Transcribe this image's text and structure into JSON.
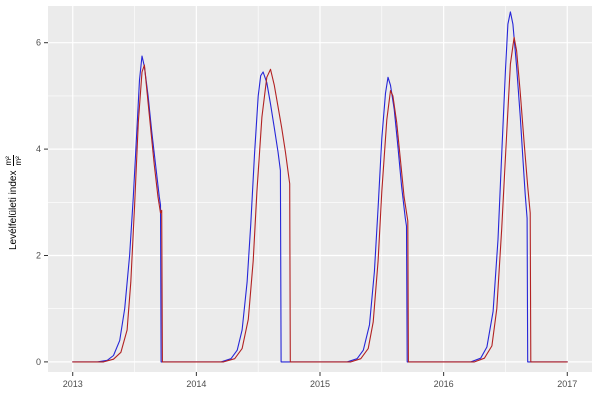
{
  "chart": {
    "ylabel_text": "Levélfelületi index",
    "unit_numerator": "m²",
    "unit_denominator": "m²"
  },
  "chart_data": {
    "type": "line",
    "title": "",
    "xlabel": "",
    "ylabel": "Levélfelületi index (m²/m²)",
    "xlim": [
      2012.8,
      2017.2
    ],
    "ylim": [
      -0.19,
      6.69
    ],
    "x_ticks": [
      2013,
      2014,
      2015,
      2016,
      2017
    ],
    "x_minor_ticks": [
      2013.5,
      2014.5,
      2015.5,
      2016.5
    ],
    "y_ticks": [
      0,
      2,
      4,
      6
    ],
    "y_minor_ticks": [
      1,
      3,
      5
    ],
    "grid": true,
    "legend_position": "none",
    "panel_background": "#EBEBEB",
    "grid_color": "#FFFFFF",
    "tick_label_color": "#4D4D4D",
    "tick_mark_color": "#333333",
    "series": [
      {
        "name": "blue-line",
        "color": "#2626D8",
        "points": [
          [
            2013.0,
            0
          ],
          [
            2013.2,
            0
          ],
          [
            2013.28,
            0.03
          ],
          [
            2013.33,
            0.12
          ],
          [
            2013.38,
            0.4
          ],
          [
            2013.42,
            1.0
          ],
          [
            2013.46,
            2.0
          ],
          [
            2013.49,
            3.1
          ],
          [
            2013.52,
            4.4
          ],
          [
            2013.54,
            5.3
          ],
          [
            2013.56,
            5.75
          ],
          [
            2013.58,
            5.55
          ],
          [
            2013.61,
            5.0
          ],
          [
            2013.64,
            4.3
          ],
          [
            2013.67,
            3.7
          ],
          [
            2013.7,
            3.1
          ],
          [
            2013.71,
            2.95
          ],
          [
            2013.715,
            0
          ],
          [
            2013.8,
            0
          ],
          [
            2014.2,
            0
          ],
          [
            2014.28,
            0.06
          ],
          [
            2014.33,
            0.22
          ],
          [
            2014.37,
            0.6
          ],
          [
            2014.41,
            1.5
          ],
          [
            2014.44,
            2.6
          ],
          [
            2014.47,
            3.9
          ],
          [
            2014.5,
            5.0
          ],
          [
            2014.52,
            5.38
          ],
          [
            2014.54,
            5.45
          ],
          [
            2014.57,
            5.25
          ],
          [
            2014.6,
            4.85
          ],
          [
            2014.63,
            4.4
          ],
          [
            2014.66,
            3.95
          ],
          [
            2014.68,
            3.6
          ],
          [
            2014.685,
            0
          ],
          [
            2014.75,
            0
          ],
          [
            2015.22,
            0
          ],
          [
            2015.3,
            0.06
          ],
          [
            2015.35,
            0.22
          ],
          [
            2015.4,
            0.7
          ],
          [
            2015.44,
            1.7
          ],
          [
            2015.47,
            2.9
          ],
          [
            2015.5,
            4.2
          ],
          [
            2015.53,
            5.05
          ],
          [
            2015.55,
            5.35
          ],
          [
            2015.57,
            5.2
          ],
          [
            2015.6,
            4.75
          ],
          [
            2015.63,
            4.05
          ],
          [
            2015.66,
            3.3
          ],
          [
            2015.69,
            2.7
          ],
          [
            2015.7,
            2.55
          ],
          [
            2015.705,
            0
          ],
          [
            2015.78,
            0
          ],
          [
            2016.22,
            0
          ],
          [
            2016.3,
            0.07
          ],
          [
            2016.35,
            0.28
          ],
          [
            2016.4,
            0.95
          ],
          [
            2016.44,
            2.3
          ],
          [
            2016.47,
            3.9
          ],
          [
            2016.5,
            5.5
          ],
          [
            2016.52,
            6.35
          ],
          [
            2016.54,
            6.58
          ],
          [
            2016.56,
            6.35
          ],
          [
            2016.59,
            5.55
          ],
          [
            2016.62,
            4.6
          ],
          [
            2016.64,
            3.85
          ],
          [
            2016.66,
            3.15
          ],
          [
            2016.675,
            2.7
          ],
          [
            2016.68,
            0
          ],
          [
            2016.8,
            0
          ],
          [
            2017.0,
            0
          ]
        ]
      },
      {
        "name": "red-line",
        "color": "#B22222",
        "points": [
          [
            2013.0,
            0
          ],
          [
            2013.25,
            0
          ],
          [
            2013.33,
            0.05
          ],
          [
            2013.39,
            0.18
          ],
          [
            2013.44,
            0.6
          ],
          [
            2013.47,
            1.5
          ],
          [
            2013.5,
            2.9
          ],
          [
            2013.53,
            4.5
          ],
          [
            2013.56,
            5.45
          ],
          [
            2013.58,
            5.58
          ],
          [
            2013.6,
            5.1
          ],
          [
            2013.63,
            4.4
          ],
          [
            2013.66,
            3.7
          ],
          [
            2013.69,
            3.1
          ],
          [
            2013.71,
            2.8
          ],
          [
            2013.72,
            2.85
          ],
          [
            2013.725,
            0
          ],
          [
            2013.8,
            0
          ],
          [
            2014.22,
            0
          ],
          [
            2014.31,
            0.06
          ],
          [
            2014.37,
            0.25
          ],
          [
            2014.42,
            0.8
          ],
          [
            2014.46,
            1.9
          ],
          [
            2014.49,
            3.2
          ],
          [
            2014.53,
            4.6
          ],
          [
            2014.57,
            5.35
          ],
          [
            2014.6,
            5.5
          ],
          [
            2014.63,
            5.2
          ],
          [
            2014.66,
            4.8
          ],
          [
            2014.69,
            4.4
          ],
          [
            2014.72,
            3.95
          ],
          [
            2014.74,
            3.6
          ],
          [
            2014.755,
            3.35
          ],
          [
            2014.76,
            0
          ],
          [
            2014.82,
            0
          ],
          [
            2015.25,
            0
          ],
          [
            2015.33,
            0.06
          ],
          [
            2015.39,
            0.25
          ],
          [
            2015.43,
            0.75
          ],
          [
            2015.47,
            1.9
          ],
          [
            2015.5,
            3.2
          ],
          [
            2015.54,
            4.55
          ],
          [
            2015.57,
            5.1
          ],
          [
            2015.59,
            5.0
          ],
          [
            2015.62,
            4.5
          ],
          [
            2015.65,
            3.8
          ],
          [
            2015.68,
            3.1
          ],
          [
            2015.71,
            2.65
          ],
          [
            2015.715,
            0
          ],
          [
            2015.8,
            0
          ],
          [
            2016.25,
            0
          ],
          [
            2016.33,
            0.07
          ],
          [
            2016.39,
            0.3
          ],
          [
            2016.43,
            1.0
          ],
          [
            2016.47,
            2.5
          ],
          [
            2016.51,
            4.3
          ],
          [
            2016.54,
            5.6
          ],
          [
            2016.57,
            6.1
          ],
          [
            2016.59,
            5.85
          ],
          [
            2016.62,
            5.05
          ],
          [
            2016.65,
            4.15
          ],
          [
            2016.68,
            3.3
          ],
          [
            2016.7,
            2.8
          ],
          [
            2016.705,
            0
          ],
          [
            2016.8,
            0
          ],
          [
            2017.0,
            0
          ]
        ]
      }
    ]
  }
}
